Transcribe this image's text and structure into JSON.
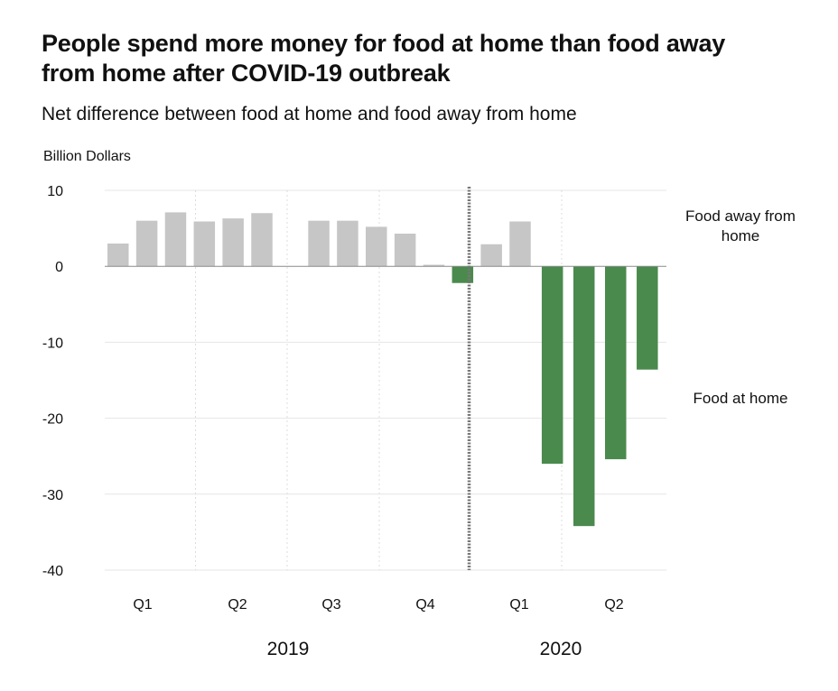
{
  "chart_data": {
    "type": "bar",
    "title": "People spend more money for food at home than food away from home after COVID-19 outbreak",
    "subtitle": "Net difference between food at home and food away from home",
    "ylabel": "Billion Dollars",
    "ylim": [
      -40,
      10
    ],
    "yticks": [
      10,
      0,
      -10,
      -20,
      -30,
      -40
    ],
    "grid": true,
    "series": [
      {
        "values": [
          3.0,
          6.0,
          7.1,
          5.9,
          6.3,
          7.0,
          6.0,
          6.0,
          5.2,
          4.3,
          0.2,
          -2.2,
          2.9,
          5.9,
          -26.0,
          -34.2,
          -25.4,
          -13.6
        ],
        "colors": {
          "positive": "#c6c6c6",
          "negative": "#4a8a4d"
        }
      }
    ],
    "quarter_labels": [
      "Q1",
      "Q2",
      "Q3",
      "Q4",
      "Q1",
      "Q2"
    ],
    "year_labels": [
      "2019",
      "2020"
    ],
    "annotations": {
      "positive_label": "Food away from home",
      "negative_label": "Food at home",
      "divider": "outbreak separator between 2019 and 2020"
    }
  }
}
